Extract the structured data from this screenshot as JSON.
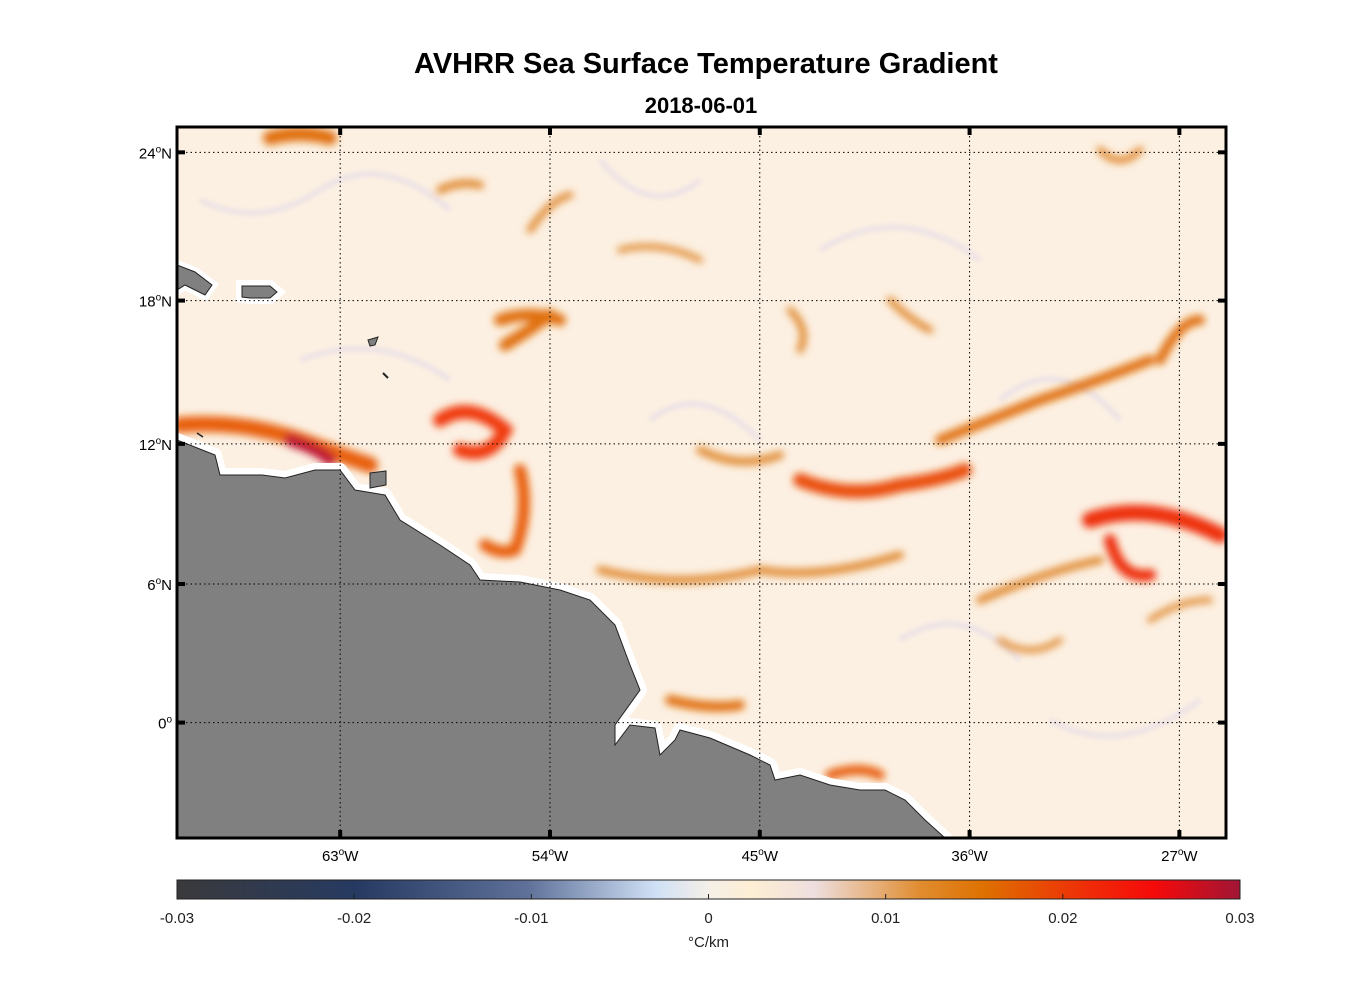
{
  "chart_data": {
    "type": "heatmap",
    "title": "AVHRR Sea Surface Temperature Gradient",
    "subtitle": "2018-06-01",
    "lon_range": [
      -70,
      -25
    ],
    "lat_range": [
      -5,
      25
    ],
    "lon_ticks": [
      {
        "value": -63,
        "label": "63",
        "suffix": "W"
      },
      {
        "value": -54,
        "label": "54",
        "suffix": "W"
      },
      {
        "value": -45,
        "label": "45",
        "suffix": "W"
      },
      {
        "value": -36,
        "label": "36",
        "suffix": "W"
      },
      {
        "value": -27,
        "label": "27",
        "suffix": "W"
      }
    ],
    "lat_ticks": [
      {
        "value": 24,
        "label": "24",
        "suffix": "N"
      },
      {
        "value": 18,
        "label": "18",
        "suffix": "N"
      },
      {
        "value": 12,
        "label": "12",
        "suffix": "N"
      },
      {
        "value": 6,
        "label": "6",
        "suffix": "N"
      },
      {
        "value": 0,
        "label": "0",
        "suffix": ""
      }
    ],
    "grid": true,
    "land_color": "#808080",
    "colorbar": {
      "label": "°C/km",
      "range": [
        -0.03,
        0.03
      ],
      "ticks": [
        "-0.03",
        "-0.02",
        "-0.01",
        "0",
        "0.01",
        "0.02",
        "0.03"
      ],
      "tick_values": [
        -0.03,
        -0.02,
        -0.01,
        0,
        0.01,
        0.02,
        0.03
      ],
      "colors": [
        "#3a3a3c",
        "#263a62",
        "#5f7199",
        "#cfe0f5",
        "#f5efe8",
        "#fdeed4",
        "#eedede",
        "#e08c2e",
        "#de7000",
        "#f02a08",
        "#f50a0a",
        "#a01535"
      ],
      "placement": "bottom"
    }
  }
}
